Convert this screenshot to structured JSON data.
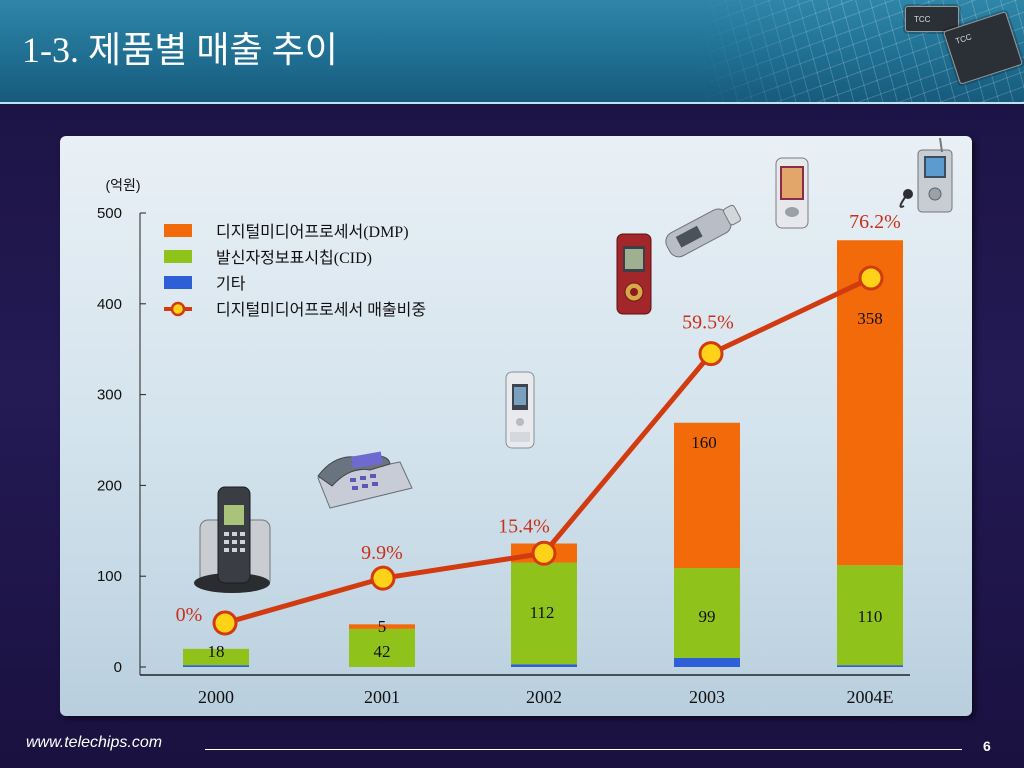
{
  "slide": {
    "title": "1-3. 제품별 매출 추이",
    "footer_url": "www.telechips.com",
    "page_number": "6"
  },
  "chart_data": {
    "type": "bar",
    "stacked": true,
    "unit_label": "(억원)",
    "ylim": [
      0,
      500
    ],
    "yticks": [
      0,
      100,
      200,
      300,
      400,
      500
    ],
    "categories": [
      "2000",
      "2001",
      "2002",
      "2003",
      "2004E"
    ],
    "series": [
      {
        "name": "기타",
        "color": "#2f5fd6",
        "values": [
          2,
          0,
          3,
          10,
          2
        ],
        "labels": [
          "",
          "",
          "",
          "",
          ""
        ]
      },
      {
        "name": "발신자정보표시칩(CID)",
        "color": "#8fc21b",
        "values": [
          18,
          42,
          112,
          99,
          110
        ],
        "labels": [
          "18",
          "42",
          "112",
          "99",
          "110"
        ]
      },
      {
        "name": "디지털미디어프로세서(DMP)",
        "color": "#f26a0a",
        "values": [
          0,
          5,
          21,
          160,
          358
        ],
        "labels": [
          "",
          "5",
          "21",
          "160",
          "358"
        ]
      }
    ],
    "line": {
      "name": "디지털미디어프로세서 매출비중",
      "color": "#d23a10",
      "marker_color": "#ffd21a",
      "values": [
        0,
        9.9,
        15.4,
        59.5,
        76.2
      ],
      "labels": [
        "0%",
        "9.9%",
        "15.4%",
        "59.5%",
        "76.2%"
      ]
    },
    "legend": {
      "placement": "top-left",
      "entries": [
        {
          "label": "디지털미디어프로세서(DMP)",
          "kind": "bar",
          "color": "#f26a0a"
        },
        {
          "label": "발신자정보표시칩(CID)",
          "kind": "bar",
          "color": "#8fc21b"
        },
        {
          "label": "기타",
          "kind": "bar",
          "color": "#2f5fd6"
        },
        {
          "label": "디지털미디어프로세서 매출비중",
          "kind": "line",
          "color": "#d23a10"
        }
      ]
    }
  },
  "product_images": [
    {
      "name": "cordless-phone-image"
    },
    {
      "name": "desk-phone-image"
    },
    {
      "name": "voice-recorder-image"
    },
    {
      "name": "red-mp3-player-image"
    },
    {
      "name": "usb-mp3-player-image"
    },
    {
      "name": "pda-phone-image"
    },
    {
      "name": "lcd-mp3-player-image"
    }
  ]
}
